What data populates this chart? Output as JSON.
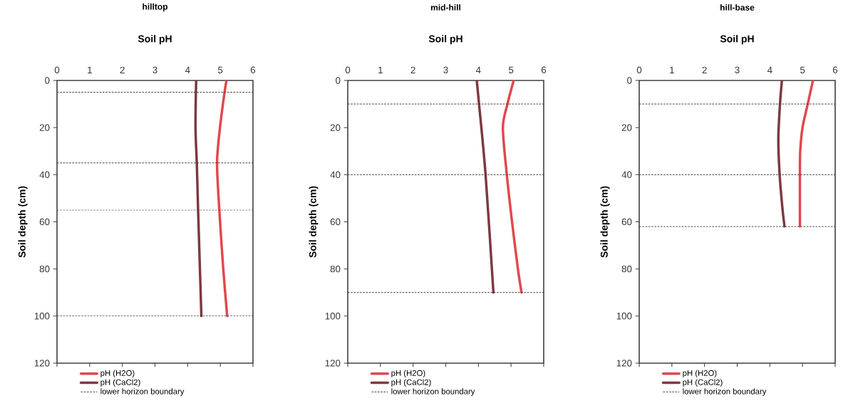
{
  "chart_data": [
    {
      "type": "line",
      "title": "hilltop",
      "xlabel": "Soil pH",
      "ylabel": "Soil depth (cm)",
      "xlim": [
        0,
        6
      ],
      "xticks": [
        0,
        1,
        2,
        3,
        4,
        5,
        6
      ],
      "ylim": [
        120,
        0
      ],
      "yticks": [
        0,
        20,
        40,
        60,
        80,
        100,
        120
      ],
      "legend": "bottom",
      "series": [
        {
          "name": "pH (H2O)",
          "color": "#e0484e",
          "x": [
            5.19,
            5.13,
            4.99,
            4.9,
            4.97,
            5.09,
            5.21
          ],
          "values": [
            0,
            5,
            20,
            35,
            55,
            80,
            100
          ]
        },
        {
          "name": "pH (CaCl2)",
          "color": "#7b3a40",
          "x": [
            4.26,
            4.24,
            4.28,
            4.32,
            4.42
          ],
          "values": [
            0,
            20,
            35,
            55,
            100
          ]
        }
      ],
      "ref_lines": [
        {
          "axis": "y",
          "value": 5,
          "label": "lower horizon boundary",
          "line_style": "dashed",
          "color": "#333333"
        },
        {
          "axis": "y",
          "value": 35,
          "line_style": "dashed",
          "color": "#333333"
        },
        {
          "axis": "y",
          "value": 55,
          "line_style": "dashed",
          "color": "#333333"
        },
        {
          "axis": "y",
          "value": 100,
          "line_style": "dashed",
          "color": "#333333"
        }
      ]
    },
    {
      "type": "line",
      "title": "mid-hill",
      "xlabel": "Soil pH",
      "ylabel": "Soil depth (cm)",
      "xlim": [
        0,
        6
      ],
      "xticks": [
        0,
        1,
        2,
        3,
        4,
        5,
        6
      ],
      "ylim": [
        120,
        0
      ],
      "yticks": [
        0,
        20,
        40,
        60,
        80,
        100,
        120
      ],
      "legend": "bottom",
      "series": [
        {
          "name": "pH (H2O)",
          "color": "#e0484e",
          "x": [
            5.08,
            4.89,
            4.75,
            4.87,
            5.03,
            5.21,
            5.32
          ],
          "values": [
            0,
            10,
            20,
            40,
            60,
            80,
            90
          ]
        },
        {
          "name": "pH (CaCl2)",
          "color": "#7b3a40",
          "x": [
            3.95,
            4.02,
            4.22,
            4.46
          ],
          "values": [
            0,
            10,
            40,
            90
          ]
        }
      ],
      "ref_lines": [
        {
          "axis": "y",
          "value": 10,
          "label": "lower horizon boundary",
          "line_style": "dashed",
          "color": "#333333"
        },
        {
          "axis": "y",
          "value": 40,
          "line_style": "dashed",
          "color": "#333333"
        },
        {
          "axis": "y",
          "value": 90,
          "line_style": "dashed",
          "color": "#333333"
        }
      ]
    },
    {
      "type": "line",
      "title": "hill-base",
      "xlabel": "Soil pH",
      "ylabel": "Soil depth (cm)",
      "xlim": [
        0,
        6
      ],
      "xticks": [
        0,
        1,
        2,
        3,
        4,
        5,
        6
      ],
      "ylim": [
        120,
        0
      ],
      "yticks": [
        0,
        20,
        40,
        60,
        80,
        100,
        120
      ],
      "legend": "bottom",
      "series": [
        {
          "name": "pH (H2O)",
          "color": "#e0484e",
          "x": [
            5.32,
            5.16,
            5.0,
            4.93,
            4.92,
            4.92
          ],
          "values": [
            0,
            10,
            20,
            30,
            40,
            62
          ]
        },
        {
          "name": "pH (CaCl2)",
          "color": "#7b3a40",
          "x": [
            4.37,
            4.31,
            4.26,
            4.3,
            4.39,
            4.45
          ],
          "values": [
            0,
            10,
            25,
            40,
            55,
            62
          ]
        }
      ],
      "ref_lines": [
        {
          "axis": "y",
          "value": 10,
          "label": "lower horizon boundary",
          "line_style": "dashed",
          "color": "#333333"
        },
        {
          "axis": "y",
          "value": 40,
          "line_style": "dashed",
          "color": "#333333"
        },
        {
          "axis": "y",
          "value": 62,
          "line_style": "dashed",
          "color": "#333333"
        }
      ]
    }
  ]
}
